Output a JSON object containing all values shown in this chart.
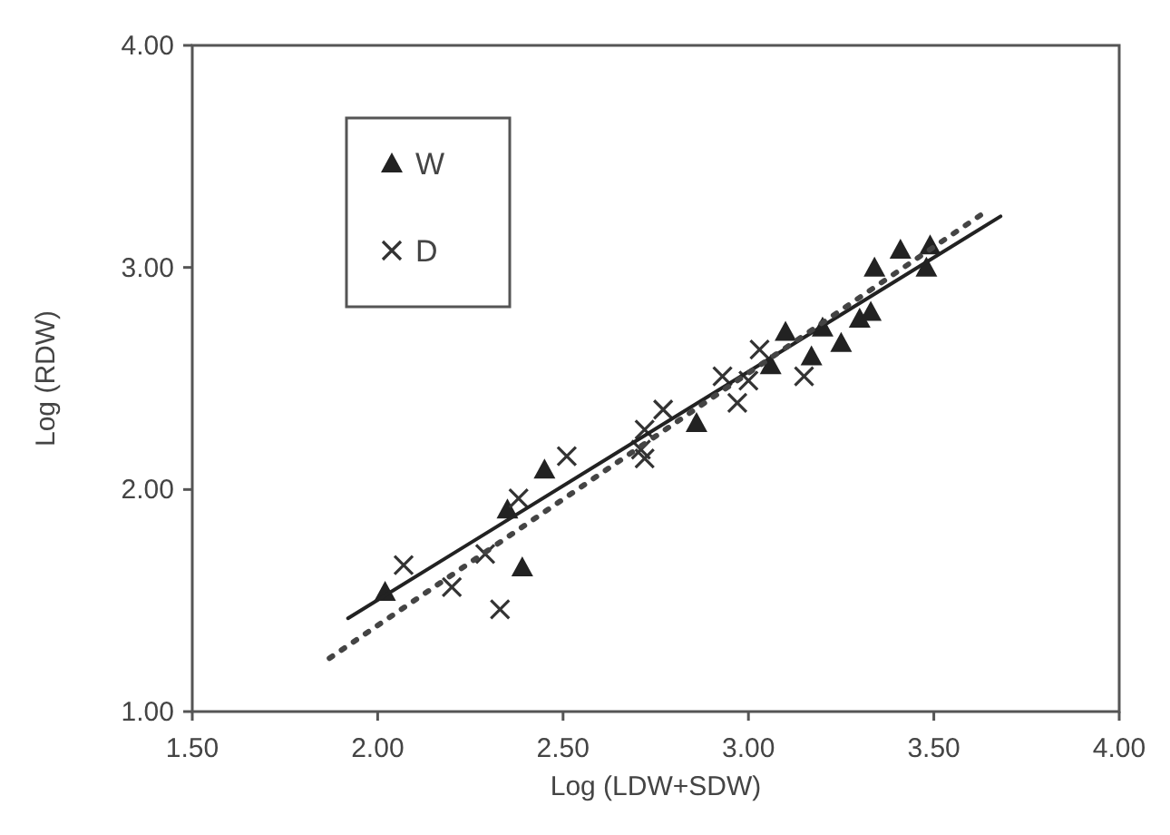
{
  "chart_data": {
    "type": "scatter",
    "xlabel": "Log (LDW+SDW)",
    "ylabel": "Log (RDW)",
    "xlim": [
      1.5,
      4.0
    ],
    "ylim": [
      1.0,
      4.0
    ],
    "xticks": [
      {
        "value": 1.5,
        "label": "1.50"
      },
      {
        "value": 2.0,
        "label": "2.00"
      },
      {
        "value": 2.5,
        "label": "2.50"
      },
      {
        "value": 3.0,
        "label": "3.00"
      },
      {
        "value": 3.5,
        "label": "3.50"
      },
      {
        "value": 4.0,
        "label": "4.00"
      }
    ],
    "yticks": [
      {
        "value": 1.0,
        "label": "1.00"
      },
      {
        "value": 2.0,
        "label": "2.00"
      },
      {
        "value": 3.0,
        "label": "3.00"
      },
      {
        "value": 4.0,
        "label": "4.00"
      }
    ],
    "grid": false,
    "legend": "top left",
    "series": [
      {
        "name": "W",
        "marker": "triangle",
        "color": "#222222",
        "x": [
          2.02,
          2.35,
          2.45,
          2.39,
          2.86,
          3.06,
          3.17,
          3.1,
          3.2,
          3.25,
          3.3,
          3.33,
          3.34,
          3.41,
          3.49,
          3.48
        ],
        "values": [
          1.54,
          1.91,
          2.09,
          1.65,
          2.3,
          2.56,
          2.6,
          2.71,
          2.73,
          2.66,
          2.77,
          2.8,
          3.0,
          3.08,
          3.1,
          3.0
        ]
      },
      {
        "name": "D",
        "marker": "cross",
        "color": "#333333",
        "x": [
          2.07,
          2.2,
          2.29,
          2.33,
          2.38,
          2.51,
          2.71,
          2.77,
          2.72,
          2.72,
          2.93,
          2.97,
          3.0,
          3.03,
          3.15
        ],
        "values": [
          1.66,
          1.56,
          1.71,
          1.46,
          1.96,
          2.15,
          2.18,
          2.36,
          2.27,
          2.14,
          2.51,
          2.39,
          2.49,
          2.63,
          2.51
        ]
      },
      {
        "type": "line",
        "line_style": "solid",
        "color": "#222222",
        "x": [
          1.92,
          3.68
        ],
        "values": [
          1.42,
          3.23
        ]
      },
      {
        "type": "line",
        "line_style": "dotted",
        "color": "#444444",
        "x": [
          1.87,
          3.63
        ],
        "values": [
          1.24,
          3.24
        ]
      }
    ]
  }
}
